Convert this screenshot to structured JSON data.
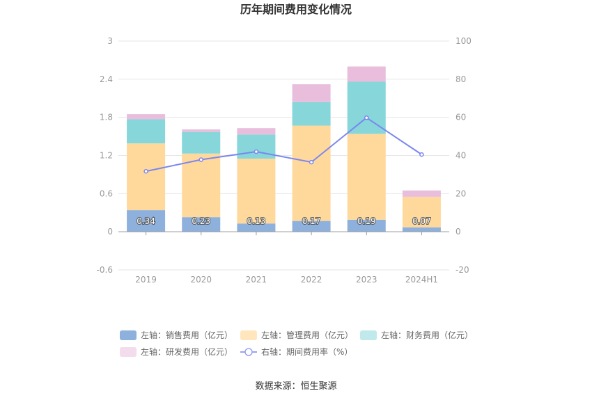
{
  "chart_data": {
    "type": "bar",
    "title": "历年期间费用变化情况",
    "categories": [
      "2019",
      "2020",
      "2021",
      "2022",
      "2023",
      "2024H1"
    ],
    "y_left": {
      "ylim": [
        -0.6,
        3
      ],
      "ticks": [
        "-0.6",
        "0",
        "0.6",
        "1.2",
        "1.8",
        "2.4",
        "3"
      ]
    },
    "y_right": {
      "ylim": [
        -20,
        100
      ],
      "ticks": [
        "-20",
        "0",
        "20",
        "40",
        "60",
        "80",
        "100"
      ]
    },
    "series": [
      {
        "name": "左轴：销售费用（亿元）",
        "type": "bar",
        "axis": "left",
        "color": "#8eb0dc",
        "values": [
          0.34,
          0.23,
          0.13,
          0.17,
          0.19,
          0.07
        ],
        "labels": [
          "0.34",
          "0.23",
          "0.13",
          "0.17",
          "0.19",
          "0.07"
        ]
      },
      {
        "name": "左轴：管理费用（亿元）",
        "type": "bar",
        "axis": "left",
        "color": "#ffd99c",
        "values": [
          1.05,
          1.0,
          1.02,
          1.5,
          1.35,
          0.48
        ]
      },
      {
        "name": "左轴：财务费用（亿元）",
        "type": "bar",
        "axis": "left",
        "color": "#86d6da",
        "values": [
          0.38,
          0.34,
          0.38,
          0.37,
          0.82,
          0.0
        ]
      },
      {
        "name": "左轴：研发费用（亿元）",
        "type": "bar",
        "axis": "left",
        "color": "#e8bedc",
        "values": [
          0.08,
          0.04,
          0.1,
          0.28,
          0.24,
          0.1
        ]
      },
      {
        "name": "右轴：期间费用率（%）",
        "type": "line",
        "axis": "right",
        "color": "#7b86ef",
        "values": [
          31.7,
          37.8,
          42.0,
          36.5,
          59.8,
          40.5
        ]
      }
    ],
    "grid": true,
    "legend_position": "bottom"
  },
  "legend": {
    "items": [
      {
        "label": "左轴：销售费用（亿元）",
        "color": "#8eb0dc",
        "kind": "bar"
      },
      {
        "label": "左轴：管理费用（亿元）",
        "color": "#ffe6bd",
        "kind": "bar"
      },
      {
        "label": "左轴：财务费用（亿元）",
        "color": "#c0e9eb",
        "kind": "bar"
      },
      {
        "label": "左轴：研发费用（亿元）",
        "color": "#f3dcec",
        "kind": "bar"
      },
      {
        "label": "右轴：期间费用率（%）",
        "color": "#9aa2f2",
        "kind": "line"
      }
    ]
  },
  "source": "数据来源：恒生聚源"
}
